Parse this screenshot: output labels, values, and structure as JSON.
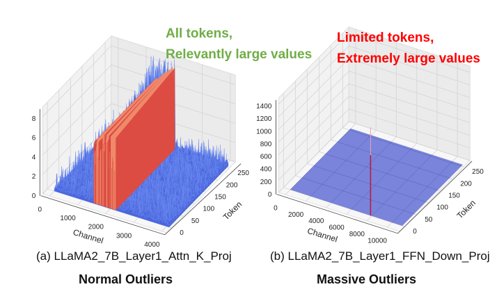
{
  "annotations": {
    "left": {
      "line1": "All tokens,",
      "line2": "Relevantly large values",
      "color": "#70ad47"
    },
    "right": {
      "line1": "Limited tokens,",
      "line2": "Extremely large values",
      "color": "#ff0000"
    }
  },
  "captions": {
    "left": "(a) LLaMA2_7B_Layer1_Attn_K_Proj",
    "right": "(b) LLaMA2_7B_Layer1_FFN_Down_Proj",
    "left_title": "Normal Outliers",
    "right_title": "Massive Outliers"
  },
  "chart_data": [
    {
      "type": "surface",
      "xlabel": "Channel",
      "ylabel": "Token",
      "zlabel": "",
      "xlim": [
        0,
        4096
      ],
      "ylim": [
        0,
        256
      ],
      "zlim": [
        0,
        9
      ],
      "xticks": [
        "0",
        "1000",
        "2000",
        "3000",
        "4000"
      ],
      "yticks": [
        "0",
        "50",
        "100",
        "150",
        "200",
        "250"
      ],
      "zticks": [
        "0",
        "2",
        "4",
        "6",
        "8"
      ],
      "outlier_channel_range": [
        1400,
        2200
      ],
      "outlier_max": 9,
      "baseline_max": 2,
      "colormap": "coolwarm",
      "grid": true
    },
    {
      "type": "surface",
      "xlabel": "Channel",
      "ylabel": "Token",
      "zlabel": "",
      "xlim": [
        0,
        11008
      ],
      "ylim": [
        0,
        256
      ],
      "zlim": [
        0,
        1500
      ],
      "xticks": [
        "0",
        "2000",
        "4000",
        "6000",
        "8000",
        "10000"
      ],
      "yticks": [
        "0",
        "50",
        "100",
        "150",
        "200",
        "250"
      ],
      "zticks": [
        "0",
        "200",
        "400",
        "600",
        "800",
        "1000",
        "1200",
        "1400"
      ],
      "massive_outlier": {
        "channel": 7890,
        "token": 0,
        "value": 1400
      },
      "surface_color": "#6b77d6",
      "spike_color": "#c0143c",
      "grid": true
    }
  ]
}
